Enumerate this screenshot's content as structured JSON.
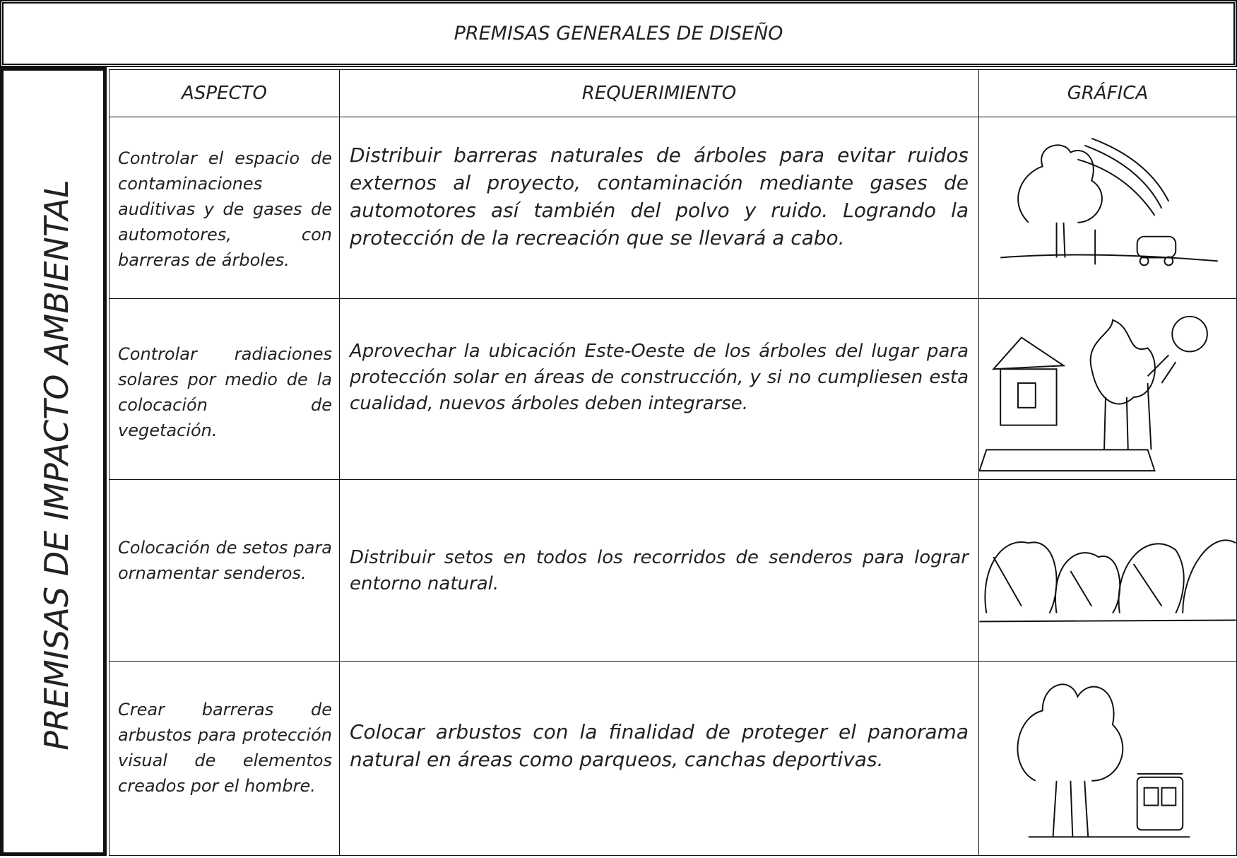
{
  "header": {
    "title": "PREMISAS GENERALES DE  DISEÑO"
  },
  "side_label": "PREMISAS DE IMPACTO AMBIENTAL",
  "table": {
    "columns": [
      "ASPECTO",
      "REQUERIMIENTO",
      "GRÁFICA"
    ],
    "rows": [
      [
        "Controlar el espacio de contaminaciones auditivas y de gases de automotores, con barreras de árboles.",
        "Distribuir barreras naturales de árboles para evitar ruidos externos al proyecto, contaminación mediante gases de automotores así también del polvo y ruido.  Logrando la protección de la recreación que se llevará a cabo."
      ],
      [
        "Controlar radiaciones solares por medio de la colocación de vegetación.",
        "Aprovechar la ubicación Este-Oeste de los árboles del lugar para protección solar en áreas de construcción, y si no cumpliesen esta cualidad, nuevos árboles deben integrarse."
      ],
      [
        "Colocación de setos para ornamentar senderos.",
        "Distribuir setos en todos los recorridos de senderos para lograr entorno natural."
      ],
      [
        "Crear barreras de arbustos para protección visual de elementos creados por el hombre.",
        "Colocar arbustos con la finalidad de proteger el panorama natural en áreas como parqueos, canchas deportivas."
      ]
    ]
  }
}
